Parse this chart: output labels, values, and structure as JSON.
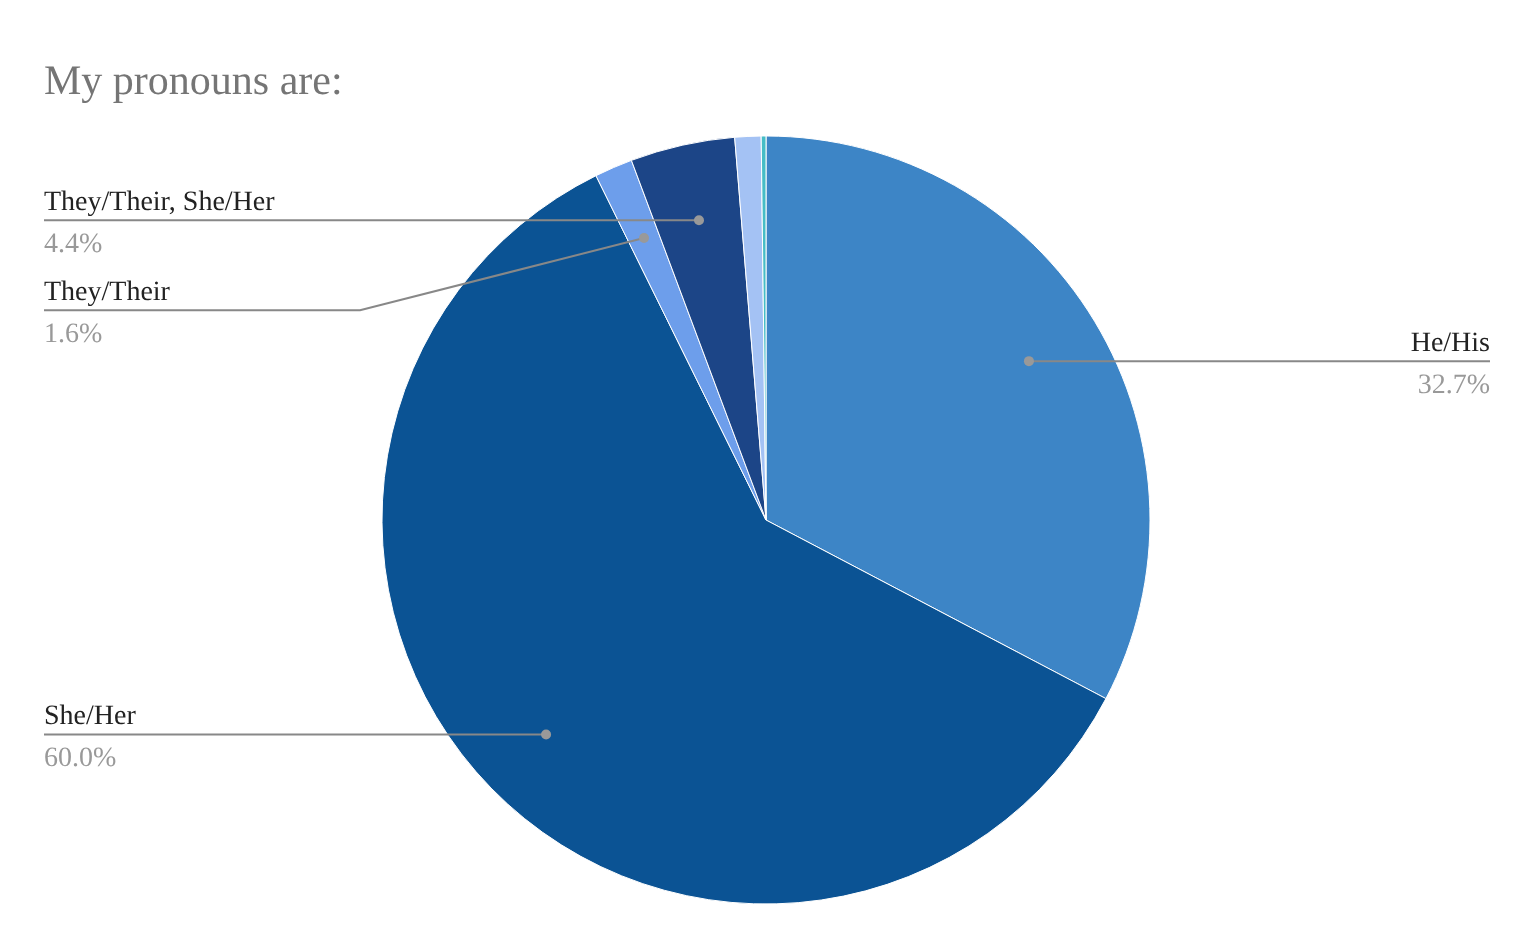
{
  "chart_data": {
    "type": "pie",
    "title": "My pronouns are:",
    "categories": [
      "He/His",
      "She/Her",
      "They/Their",
      "They/Their, She/Her",
      null,
      null
    ],
    "values": [
      32.7,
      60.0,
      1.6,
      4.4,
      1.1,
      0.2
    ],
    "colors": [
      "#3d85c6",
      "#0b5394",
      "#6d9eeb",
      "#1c4587",
      "#a4c2f4",
      "#46bdc6"
    ],
    "value_labels": [
      "32.7%",
      "60.0%",
      "1.6%",
      "4.4%",
      null,
      null
    ]
  }
}
